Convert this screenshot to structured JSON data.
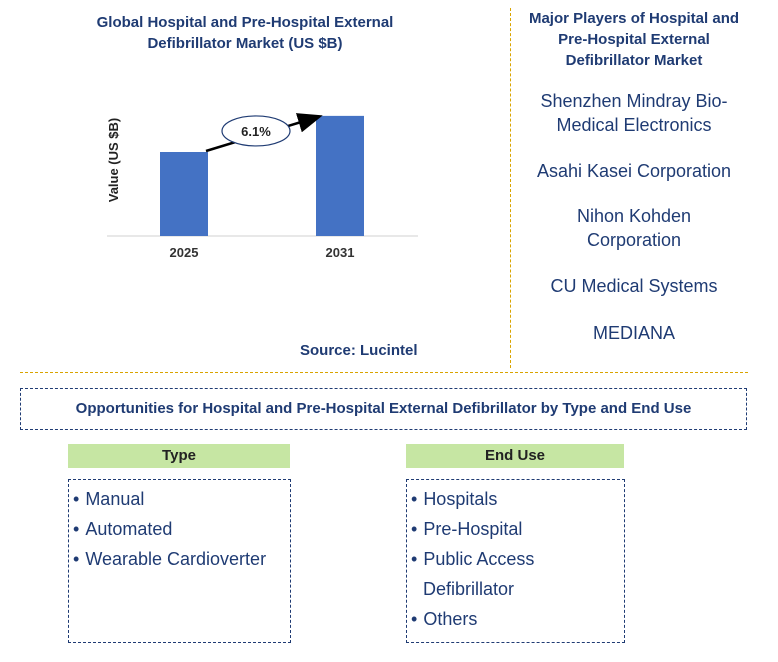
{
  "chart": {
    "title_line1": "Global Hospital and Pre-Hospital External",
    "title_line2": "Defibrillator Market (US $B)",
    "source": "Source: Lucintel"
  },
  "chart_data": {
    "type": "bar",
    "categories": [
      "2025",
      "2031"
    ],
    "values": [
      1.0,
      1.43
    ],
    "ylabel": "Value (US $B)",
    "growth_label": "6.1%",
    "colors": {
      "bar": "#4472c4",
      "arrow": "#000000"
    },
    "grid": false
  },
  "players": {
    "title_line1": "Major Players of Hospital and",
    "title_line2": "Pre-Hospital External",
    "title_line3": "Defibrillator Market",
    "items": [
      {
        "line1": "Shenzhen Mindray Bio-",
        "line2": "Medical Electronics"
      },
      {
        "line1": "Asahi Kasei Corporation",
        "line2": ""
      },
      {
        "line1": "Nihon Kohden",
        "line2": "Corporation"
      },
      {
        "line1": "CU Medical Systems",
        "line2": ""
      },
      {
        "line1": "MEDIANA",
        "line2": ""
      }
    ]
  },
  "opportunities": {
    "title": "Opportunities for Hospital and Pre-Hospital External Defibrillator by Type and End Use",
    "type": {
      "heading": "Type",
      "items": [
        "Manual",
        "Automated",
        "Wearable Cardioverter"
      ]
    },
    "end_use": {
      "heading": "End Use",
      "items": [
        "Hospitals",
        "Pre-Hospital",
        "Public Access",
        "Defibrillator",
        "Others"
      ]
    }
  },
  "colors": {
    "accent": "#1f3b73",
    "divider": "#d9a400",
    "segment_header": "#c6e6a3"
  }
}
